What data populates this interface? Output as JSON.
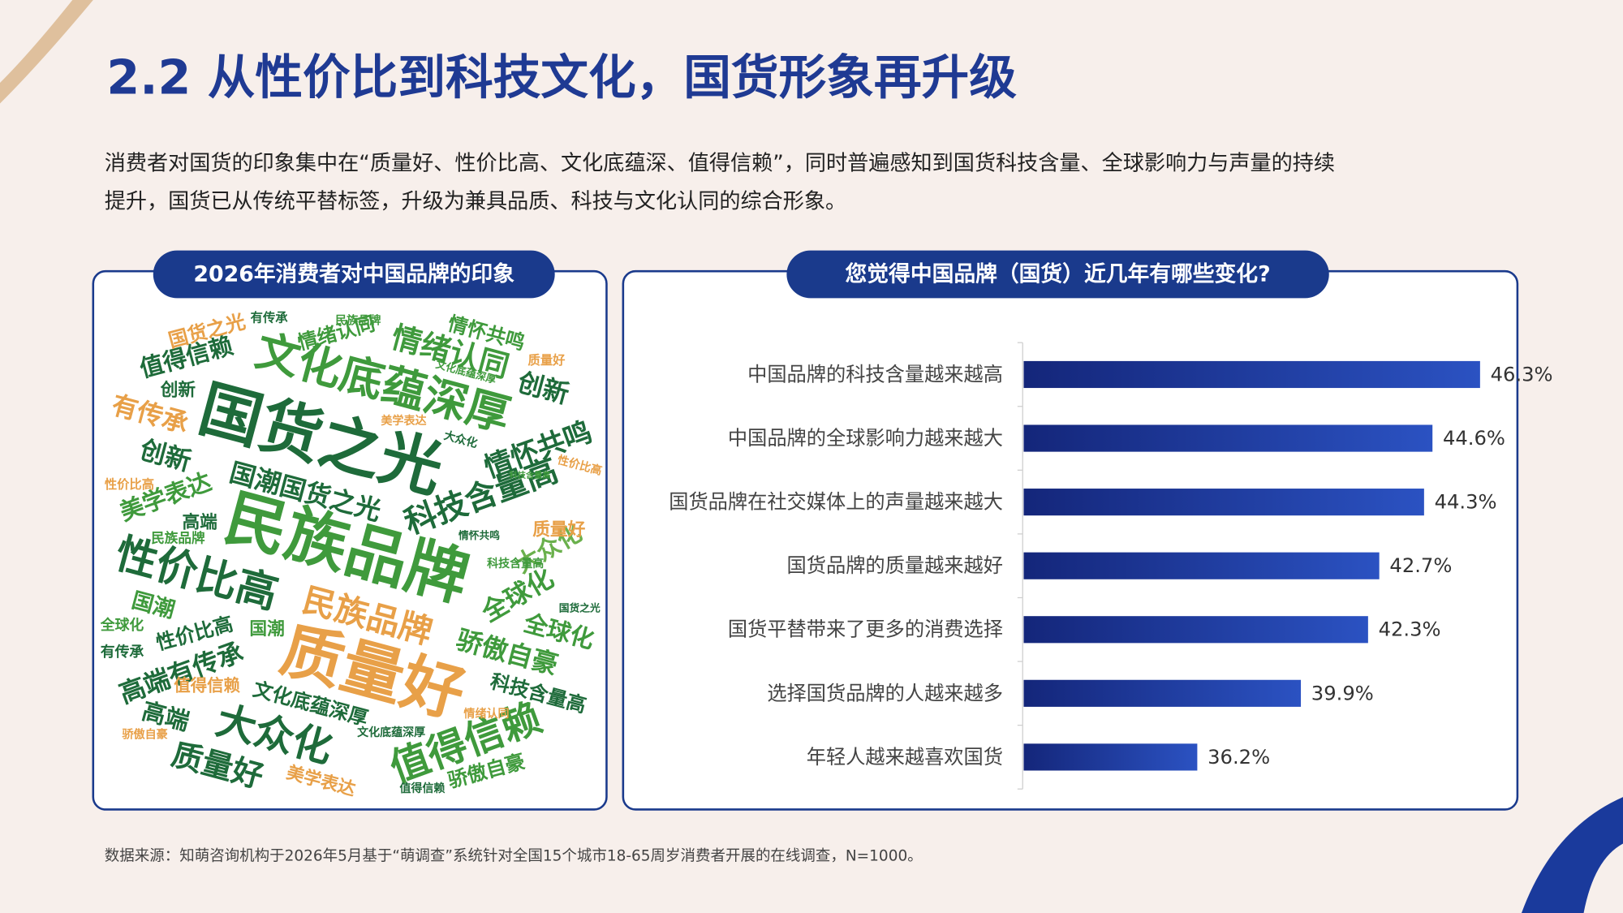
{
  "header": {
    "title": "2.2 从性价比到科技文化，国货形象再升级",
    "description": [
      "消费者对国货的印象集中在“质量好、性价比高、文化底蕴深、值得信赖”，同时普遍感知到国货科技含量、全球影响力与声量的持续",
      "提升，国货已从传统平替标签，升级为兼具品质、科技与文化认同的综合形象。"
    ]
  },
  "word_cloud": {
    "title": "2026年消费者对中国品牌的印象",
    "words": [
      "国货之光",
      "民族品牌",
      "质量好",
      "文化底蕴深厚",
      "性价比高",
      "值得信赖",
      "大众化",
      "民族品牌",
      "科技含量高",
      "情怀共鸣",
      "情绪认同",
      "国潮国货之光",
      "骄傲自豪",
      "全球化",
      "美学表达",
      "有传承",
      "创新",
      "值得信赖",
      "创新",
      "高端有传承",
      "高端",
      "质量好",
      "文化底蕴深厚",
      "科技含量高",
      "大众化",
      "全球化",
      "骄傲自豪",
      "美学表达",
      "国潮",
      "国潮",
      "性价比高",
      "国货之光",
      "情怀共鸣",
      "情绪认同",
      "有传承",
      "民族品牌",
      "质量好",
      "文化底蕴深厚",
      "美学表达",
      "大众化",
      "创新",
      "性价比高",
      "性价比高",
      "科技含量高",
      "高端",
      "民族品牌",
      "情怀共鸣",
      "科技含量高",
      "质量好",
      "国货之光",
      "全球化",
      "有传承",
      "值得信赖",
      "骄傲自豪",
      "情绪认同",
      "文化底蕴深厚",
      "值得信赖"
    ]
  },
  "chart_data": {
    "type": "bar",
    "title": "您觉得中国品牌（国货）近几年有哪些变化?",
    "categories": [
      "中国品牌的科技含量越来越高",
      "中国品牌的全球影响力越来越大",
      "国货品牌在社交媒体上的声量越来越大",
      "国货品牌的质量越来越好",
      "国货平替带来了更多的消费选择",
      "选择国货品牌的人越来越多",
      "年轻人越来越喜欢国货"
    ],
    "values": [
      46.3,
      44.6,
      44.3,
      42.7,
      42.3,
      39.9,
      36.2
    ],
    "value_labels": [
      "46.3%",
      "44.6%",
      "44.3%",
      "42.7%",
      "42.3%",
      "39.9%",
      "36.2%"
    ],
    "xlim": [
      30,
      50
    ],
    "color": "#2b52c2"
  },
  "source": "数据来源：知萌咨询机构于2026年5月基于“萌调查”系统针对全国15个城市18-65周岁消费者开展的在线调查，N=1000。"
}
